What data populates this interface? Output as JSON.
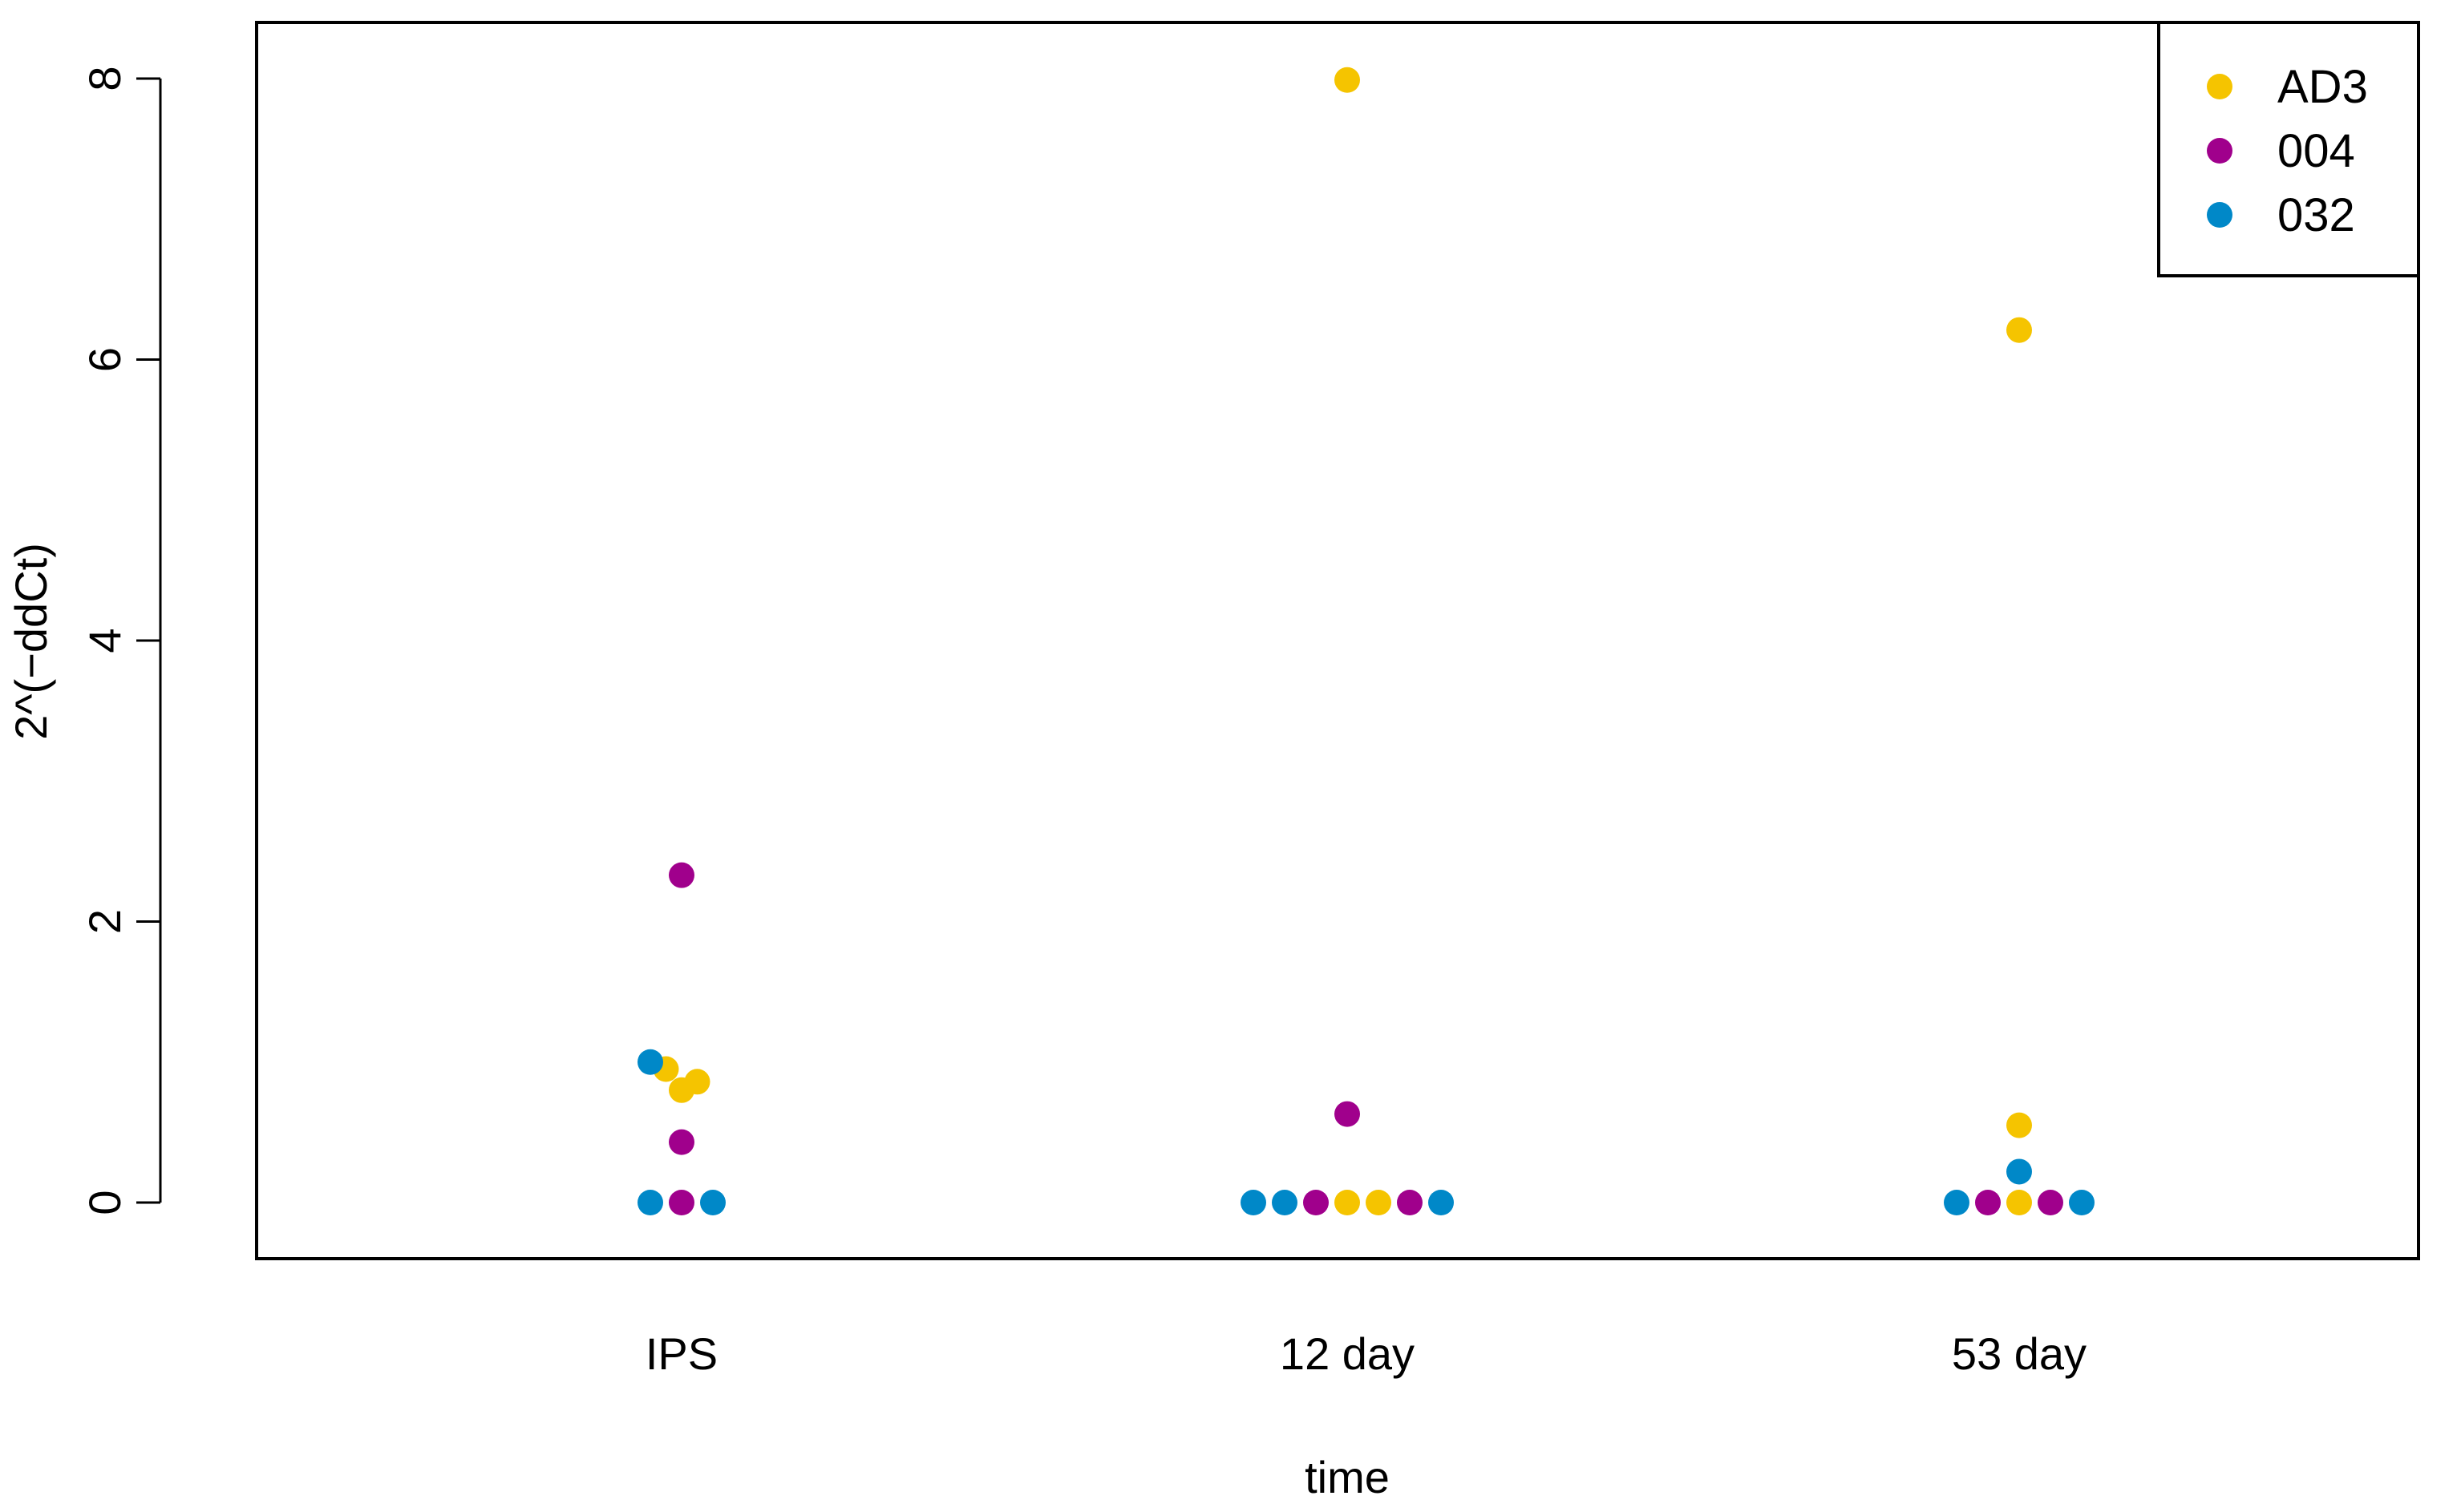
{
  "chart_data": {
    "type": "scatter",
    "title": "",
    "xlabel": "time",
    "ylabel": "2^(−ddCt)",
    "categories": [
      "IPS",
      "12 day",
      "53 day"
    ],
    "ylim": [
      0,
      8
    ],
    "yticks": [
      "0",
      "2",
      "4",
      "6",
      "8"
    ],
    "legend_position": "top-right",
    "series": [
      {
        "name": "AD3",
        "color": "#F5C400",
        "points": [
          {
            "category": "IPS",
            "jitter": -0.5,
            "y": 0.95
          },
          {
            "category": "IPS",
            "jitter": 0,
            "y": 0.8
          },
          {
            "category": "IPS",
            "jitter": 0.5,
            "y": 0.86
          },
          {
            "category": "12 day",
            "jitter": 0,
            "y": 7.99
          },
          {
            "category": "12 day",
            "jitter": 0,
            "y": 0
          },
          {
            "category": "12 day",
            "jitter": 1,
            "y": 0
          },
          {
            "category": "53 day",
            "jitter": 0,
            "y": 6.21
          },
          {
            "category": "53 day",
            "jitter": 0,
            "y": 0.55
          },
          {
            "category": "53 day",
            "jitter": 0,
            "y": 0
          }
        ]
      },
      {
        "name": "004",
        "color": "#A0008C",
        "points": [
          {
            "category": "IPS",
            "jitter": 0,
            "y": 2.33
          },
          {
            "category": "IPS",
            "jitter": 0,
            "y": 0.43
          },
          {
            "category": "IPS",
            "jitter": 0,
            "y": 0
          },
          {
            "category": "12 day",
            "jitter": 0,
            "y": 0.63
          },
          {
            "category": "12 day",
            "jitter": -1,
            "y": 0
          },
          {
            "category": "12 day",
            "jitter": 2,
            "y": 0
          },
          {
            "category": "53 day",
            "jitter": -1,
            "y": 0
          },
          {
            "category": "53 day",
            "jitter": 1,
            "y": 0
          }
        ]
      },
      {
        "name": "032",
        "color": "#0088C8",
        "points": [
          {
            "category": "IPS",
            "jitter": -1,
            "y": 1.0
          },
          {
            "category": "IPS",
            "jitter": -1,
            "y": 0
          },
          {
            "category": "IPS",
            "jitter": 1,
            "y": 0
          },
          {
            "category": "12 day",
            "jitter": -3,
            "y": 0
          },
          {
            "category": "12 day",
            "jitter": -2,
            "y": 0
          },
          {
            "category": "12 day",
            "jitter": 3,
            "y": 0
          },
          {
            "category": "53 day",
            "jitter": 0,
            "y": 0.22
          },
          {
            "category": "53 day",
            "jitter": -2,
            "y": 0
          },
          {
            "category": "53 day",
            "jitter": 2,
            "y": 0
          }
        ]
      }
    ]
  }
}
